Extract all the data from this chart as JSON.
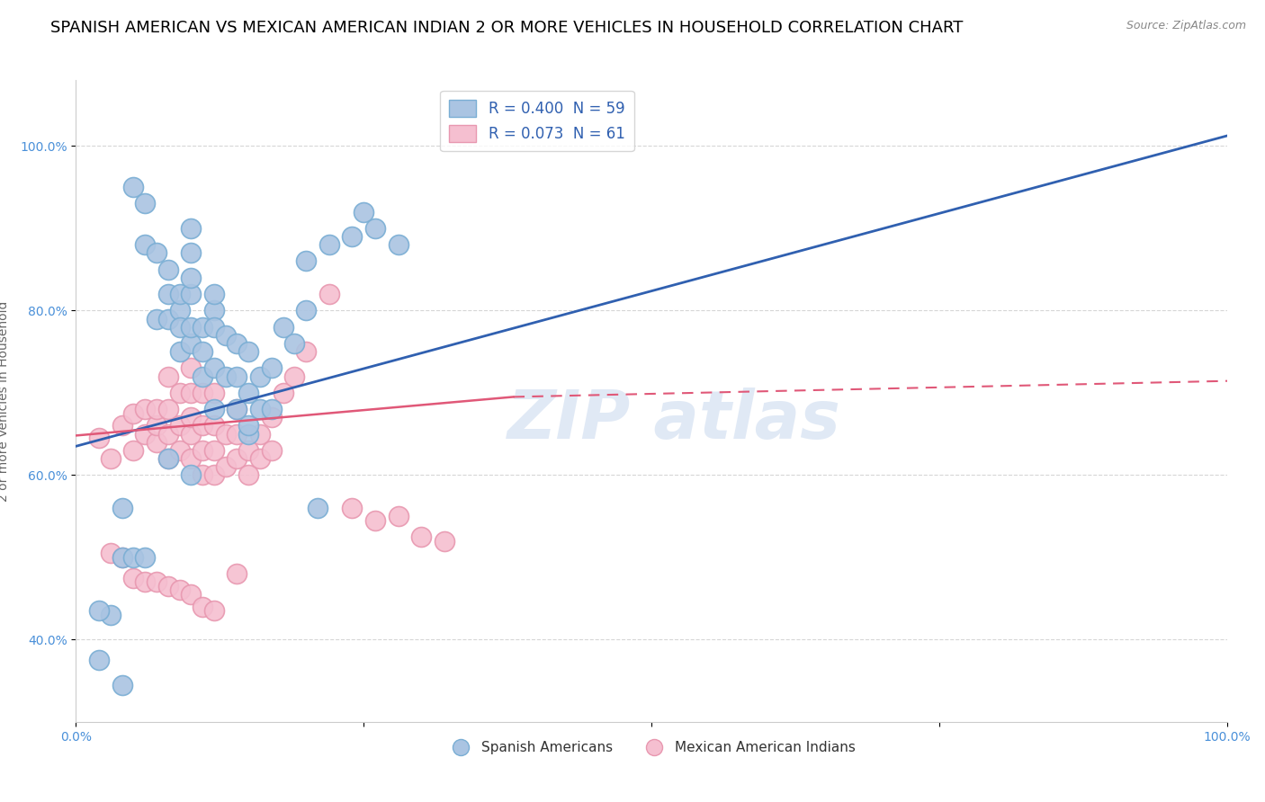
{
  "title": "SPANISH AMERICAN VS MEXICAN AMERICAN INDIAN 2 OR MORE VEHICLES IN HOUSEHOLD CORRELATION CHART",
  "source": "Source: ZipAtlas.com",
  "ylabel": "2 or more Vehicles in Household",
  "xlim": [
    0.0,
    1.0
  ],
  "ylim": [
    0.3,
    1.08
  ],
  "xticks": [
    0.0,
    0.25,
    0.5,
    0.75,
    1.0
  ],
  "xticklabels": [
    "0.0%",
    "",
    "",
    "",
    "100.0%"
  ],
  "ytick_positions": [
    0.4,
    0.6,
    0.8,
    1.0
  ],
  "ytick_labels": [
    "40.0%",
    "60.0%",
    "80.0%",
    "100.0%"
  ],
  "blue_R": 0.4,
  "blue_N": 59,
  "pink_R": 0.073,
  "pink_N": 61,
  "blue_color": "#aac4e2",
  "blue_edge": "#7aaed4",
  "pink_color": "#f5bfd0",
  "pink_edge": "#e898b0",
  "blue_line_color": "#3060b0",
  "pink_line_color": "#e05878",
  "legend_label_blue": "Spanish Americans",
  "legend_label_pink": "Mexican American Indians",
  "title_fontsize": 13,
  "axis_label_fontsize": 10,
  "tick_fontsize": 10,
  "blue_line_start_x": 0.0,
  "blue_line_start_y": 0.635,
  "blue_line_end_x": 1.02,
  "blue_line_end_y": 1.02,
  "pink_line_solid_start_x": 0.0,
  "pink_line_solid_start_y": 0.648,
  "pink_line_solid_end_x": 0.38,
  "pink_line_solid_end_y": 0.695,
  "pink_line_dash_start_x": 0.38,
  "pink_line_dash_start_y": 0.695,
  "pink_line_dash_end_x": 1.02,
  "pink_line_dash_end_y": 0.715,
  "blue_scatter_x": [
    0.02,
    0.04,
    0.04,
    0.05,
    0.06,
    0.06,
    0.07,
    0.07,
    0.08,
    0.08,
    0.08,
    0.09,
    0.09,
    0.09,
    0.09,
    0.1,
    0.1,
    0.1,
    0.1,
    0.1,
    0.1,
    0.11,
    0.11,
    0.11,
    0.12,
    0.12,
    0.12,
    0.12,
    0.13,
    0.13,
    0.14,
    0.14,
    0.14,
    0.15,
    0.15,
    0.15,
    0.16,
    0.16,
    0.17,
    0.17,
    0.18,
    0.19,
    0.2,
    0.2,
    0.21,
    0.22,
    0.24,
    0.25,
    0.26,
    0.28,
    0.04,
    0.05,
    0.03,
    0.02,
    0.06,
    0.08,
    0.1,
    0.12,
    0.15
  ],
  "blue_scatter_y": [
    0.375,
    0.345,
    0.5,
    0.95,
    0.93,
    0.88,
    0.87,
    0.79,
    0.79,
    0.82,
    0.85,
    0.8,
    0.82,
    0.78,
    0.75,
    0.76,
    0.78,
    0.82,
    0.84,
    0.87,
    0.9,
    0.72,
    0.75,
    0.78,
    0.8,
    0.73,
    0.78,
    0.82,
    0.72,
    0.77,
    0.68,
    0.72,
    0.76,
    0.65,
    0.7,
    0.75,
    0.68,
    0.72,
    0.68,
    0.73,
    0.78,
    0.76,
    0.8,
    0.86,
    0.56,
    0.88,
    0.89,
    0.92,
    0.9,
    0.88,
    0.56,
    0.5,
    0.43,
    0.435,
    0.5,
    0.62,
    0.6,
    0.68,
    0.66
  ],
  "pink_scatter_x": [
    0.02,
    0.03,
    0.04,
    0.05,
    0.05,
    0.06,
    0.06,
    0.07,
    0.07,
    0.07,
    0.08,
    0.08,
    0.08,
    0.08,
    0.09,
    0.09,
    0.09,
    0.1,
    0.1,
    0.1,
    0.1,
    0.1,
    0.11,
    0.11,
    0.11,
    0.11,
    0.12,
    0.12,
    0.12,
    0.12,
    0.13,
    0.13,
    0.14,
    0.14,
    0.14,
    0.15,
    0.15,
    0.16,
    0.16,
    0.17,
    0.17,
    0.18,
    0.19,
    0.2,
    0.22,
    0.24,
    0.26,
    0.28,
    0.3,
    0.32,
    0.03,
    0.04,
    0.05,
    0.06,
    0.07,
    0.08,
    0.09,
    0.1,
    0.11,
    0.12,
    0.14
  ],
  "pink_scatter_y": [
    0.645,
    0.62,
    0.66,
    0.675,
    0.63,
    0.65,
    0.68,
    0.64,
    0.66,
    0.68,
    0.62,
    0.65,
    0.68,
    0.72,
    0.63,
    0.66,
    0.7,
    0.62,
    0.65,
    0.67,
    0.7,
    0.73,
    0.6,
    0.63,
    0.66,
    0.7,
    0.6,
    0.63,
    0.66,
    0.7,
    0.61,
    0.65,
    0.62,
    0.65,
    0.68,
    0.6,
    0.63,
    0.62,
    0.65,
    0.63,
    0.67,
    0.7,
    0.72,
    0.75,
    0.82,
    0.56,
    0.545,
    0.55,
    0.525,
    0.52,
    0.505,
    0.5,
    0.475,
    0.47,
    0.47,
    0.465,
    0.46,
    0.455,
    0.44,
    0.435,
    0.48
  ]
}
